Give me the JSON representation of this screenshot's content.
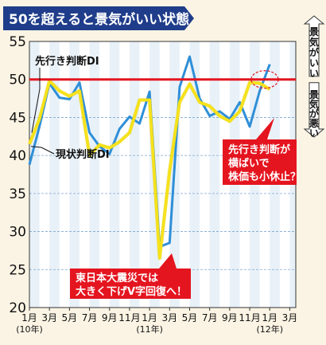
{
  "chart_data": {
    "type": "line",
    "title": "50を超えると景気がいい状態",
    "ylim": [
      20,
      55
    ],
    "yticks": [
      20,
      25,
      30,
      35,
      40,
      45,
      50,
      55
    ],
    "reference_line": 50,
    "x_tick_labels": [
      {
        "label": "1月",
        "sub": "(10年)",
        "x": 0
      },
      {
        "label": "3月",
        "sub": "",
        "x": 2
      },
      {
        "label": "5月",
        "sub": "",
        "x": 4
      },
      {
        "label": "7月",
        "sub": "",
        "x": 6
      },
      {
        "label": "9月",
        "sub": "",
        "x": 8
      },
      {
        "label": "11月",
        "sub": "",
        "x": 10
      },
      {
        "label": "1月",
        "sub": "(11年)",
        "x": 12
      },
      {
        "label": "3月",
        "sub": "",
        "x": 14
      },
      {
        "label": "5月",
        "sub": "",
        "x": 16
      },
      {
        "label": "7月",
        "sub": "",
        "x": 18
      },
      {
        "label": "9月",
        "sub": "",
        "x": 20
      },
      {
        "label": "11月",
        "sub": "",
        "x": 22
      },
      {
        "label": "1月",
        "sub": "(12年)",
        "x": 24
      },
      {
        "label": "3月",
        "sub": "",
        "x": 26
      }
    ],
    "series": [
      {
        "name": "現状判断DI",
        "color": "#2f8fd8",
        "values": [
          38.8,
          43.8,
          49.5,
          47.6,
          47.4,
          49.6,
          43.0,
          41.2,
          40.2,
          43.5,
          45.1,
          44.2,
          48.4,
          28.0,
          28.5,
          49.0,
          53.0,
          47.5,
          45.2,
          45.8,
          44.8,
          47.0,
          43.8,
          48.5,
          52.0
        ]
      },
      {
        "name": "先行き判断DI",
        "color": "#f6e21a",
        "values": [
          41.5,
          44.8,
          49.8,
          48.5,
          47.8,
          48.5,
          40.0,
          41.4,
          41.0,
          41.8,
          43.0,
          47.3,
          47.3,
          26.5,
          38.0,
          47.0,
          49.4,
          47.0,
          46.5,
          45.2,
          44.5,
          45.8,
          49.6,
          49.5,
          48.7
        ]
      }
    ],
    "series_labels": {
      "leading": "先行き判断DI",
      "current": "現状判断DI"
    },
    "side_labels": {
      "good": "景気がいい",
      "bad": "景気が悪い"
    },
    "callouts": {
      "quake": [
        "東日本大震災では",
        "大きく下げV字回復へ！"
      ],
      "flat": [
        "先行き判断が",
        "横ばいで",
        "株価も小休止？"
      ]
    },
    "colors": {
      "background": "#fbf4e4",
      "plot_background": "#ffffff",
      "stripe": "#e9f1f8",
      "grid": "#7fa7d0",
      "reference": "#e4151f",
      "title_bg": "#1f3d8a",
      "callout_bg": "#e4151f"
    }
  }
}
